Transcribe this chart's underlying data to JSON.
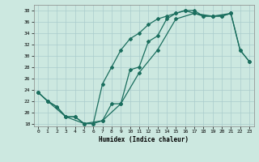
{
  "xlabel": "Humidex (Indice chaleur)",
  "bg_color": "#cce8e0",
  "line_color": "#1a6e5e",
  "grid_color": "#aacccc",
  "xlim": [
    -0.5,
    23.5
  ],
  "ylim": [
    17.5,
    39
  ],
  "yticks": [
    18,
    20,
    22,
    24,
    26,
    28,
    30,
    32,
    34,
    36,
    38
  ],
  "xticks": [
    0,
    1,
    2,
    3,
    4,
    5,
    6,
    7,
    8,
    9,
    10,
    11,
    12,
    13,
    14,
    15,
    16,
    17,
    18,
    19,
    20,
    21,
    22,
    23
  ],
  "line1_x": [
    0,
    1,
    2,
    3,
    4,
    5,
    6,
    7,
    8,
    9,
    10,
    11,
    12,
    13,
    14,
    15,
    16,
    17,
    18,
    19,
    20,
    21
  ],
  "line1_y": [
    23.5,
    22,
    21,
    19.2,
    19.2,
    18,
    18,
    18.5,
    21.5,
    21.5,
    27.5,
    28,
    32.5,
    33.5,
    36.5,
    37.5,
    38,
    37.5,
    37,
    37,
    37,
    37.5
  ],
  "line2_x": [
    0,
    1,
    2,
    3,
    4,
    5,
    6,
    7,
    8,
    9,
    10,
    11,
    12,
    13,
    14,
    15,
    16,
    17,
    18,
    19,
    20,
    21,
    22,
    23
  ],
  "line2_y": [
    23.5,
    22,
    21,
    19.2,
    19.2,
    18,
    18,
    25,
    28,
    31,
    33,
    34,
    35.5,
    36.5,
    37,
    37.5,
    38,
    38,
    37,
    37,
    37,
    37.5,
    31,
    29
  ],
  "line3_x": [
    0,
    1,
    3,
    5,
    7,
    9,
    11,
    13,
    15,
    17,
    19,
    21,
    22,
    23
  ],
  "line3_y": [
    23.5,
    22,
    19.2,
    18,
    18.5,
    21.5,
    27,
    31,
    36.5,
    37.5,
    37,
    37.5,
    31,
    29
  ],
  "marker": "D",
  "marker_size": 2.0,
  "line_width": 0.9,
  "tick_fontsize": 4.5,
  "xlabel_fontsize": 5.5
}
